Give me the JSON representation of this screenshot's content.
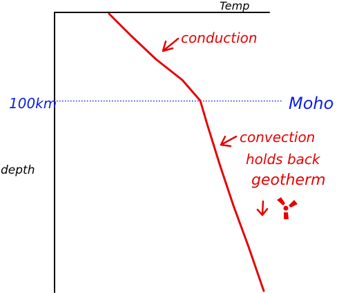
{
  "axes": {
    "x_label": "Temp",
    "y_label": "depth"
  },
  "boundary": {
    "depth_label": "100km",
    "name": "Moho"
  },
  "annotations": {
    "upper": "conduction",
    "lower_line1": "convection",
    "lower_line2": "holds back",
    "lower_line3": "geotherm"
  },
  "colors": {
    "axes": "#000000",
    "geotherm": "#e60000",
    "moho": "#0a1ee6"
  },
  "icons": {
    "radioactive": "radiation-trefoil-icon",
    "heat_arrow": "down-arrow-icon"
  }
}
